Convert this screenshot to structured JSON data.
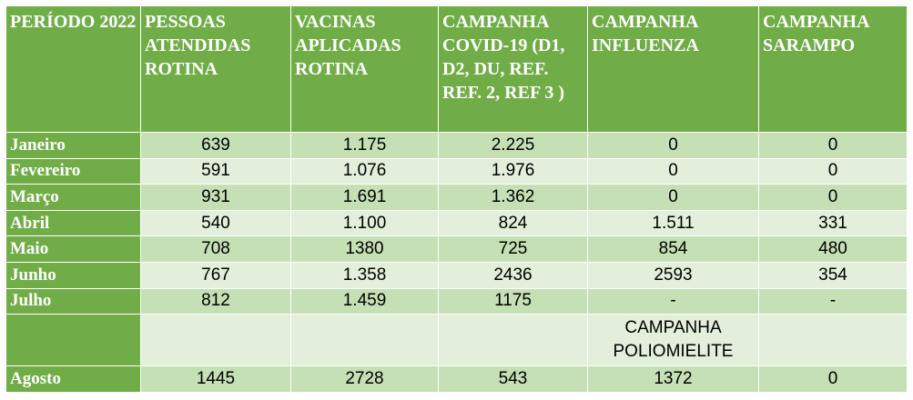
{
  "header": {
    "periodo": "PERÍODO 2022",
    "pessoas": "PESSOAS ATENDIDAS ROTINA",
    "vacinas": "VACINAS APLICADAS ROTINA",
    "covid": "CAMPANHA COVID-19 (D1, D2, DU, REF. REF. 2, REF 3 )",
    "influenza": "CAMPANHA INFLUENZA",
    "sarampo": "CAMPANHA SARAMPO"
  },
  "rows": [
    {
      "mes": "Janeiro",
      "pessoas": "639",
      "vacinas": "1.175",
      "covid": "2.225",
      "influenza": "0",
      "sarampo": "0"
    },
    {
      "mes": "Fevereiro",
      "pessoas": "591",
      "vacinas": "1.076",
      "covid": "1.976",
      "influenza": "0",
      "sarampo": "0"
    },
    {
      "mes": "Março",
      "pessoas": "931",
      "vacinas": "1.691",
      "covid": "1.362",
      "influenza": "0",
      "sarampo": "0"
    },
    {
      "mes": "Abril",
      "pessoas": "540",
      "vacinas": "1.100",
      "covid": "824",
      "influenza": "1.511",
      "sarampo": "331"
    },
    {
      "mes": "Maio",
      "pessoas": "708",
      "vacinas": "1380",
      "covid": "725",
      "influenza": "854",
      "sarampo": "480"
    },
    {
      "mes": "Junho",
      "pessoas": "767",
      "vacinas": "1.358",
      "covid": "2436",
      "influenza": "2593",
      "sarampo": "354"
    },
    {
      "mes": "Julho",
      "pessoas": "812",
      "vacinas": "1.459",
      "covid": "1175",
      "influenza": "-",
      "sarampo": "-"
    }
  ],
  "subheader": {
    "polio": "CAMPANHA POLIOMIELITE"
  },
  "agosto": {
    "mes": "Agosto",
    "pessoas": "1445",
    "vacinas": "2728",
    "covid": "543",
    "polio": "1372",
    "sarampo": "0"
  },
  "colors": {
    "header_green": "#70ad47",
    "row_dark": "#c5e0b4",
    "row_light": "#e2efda"
  }
}
